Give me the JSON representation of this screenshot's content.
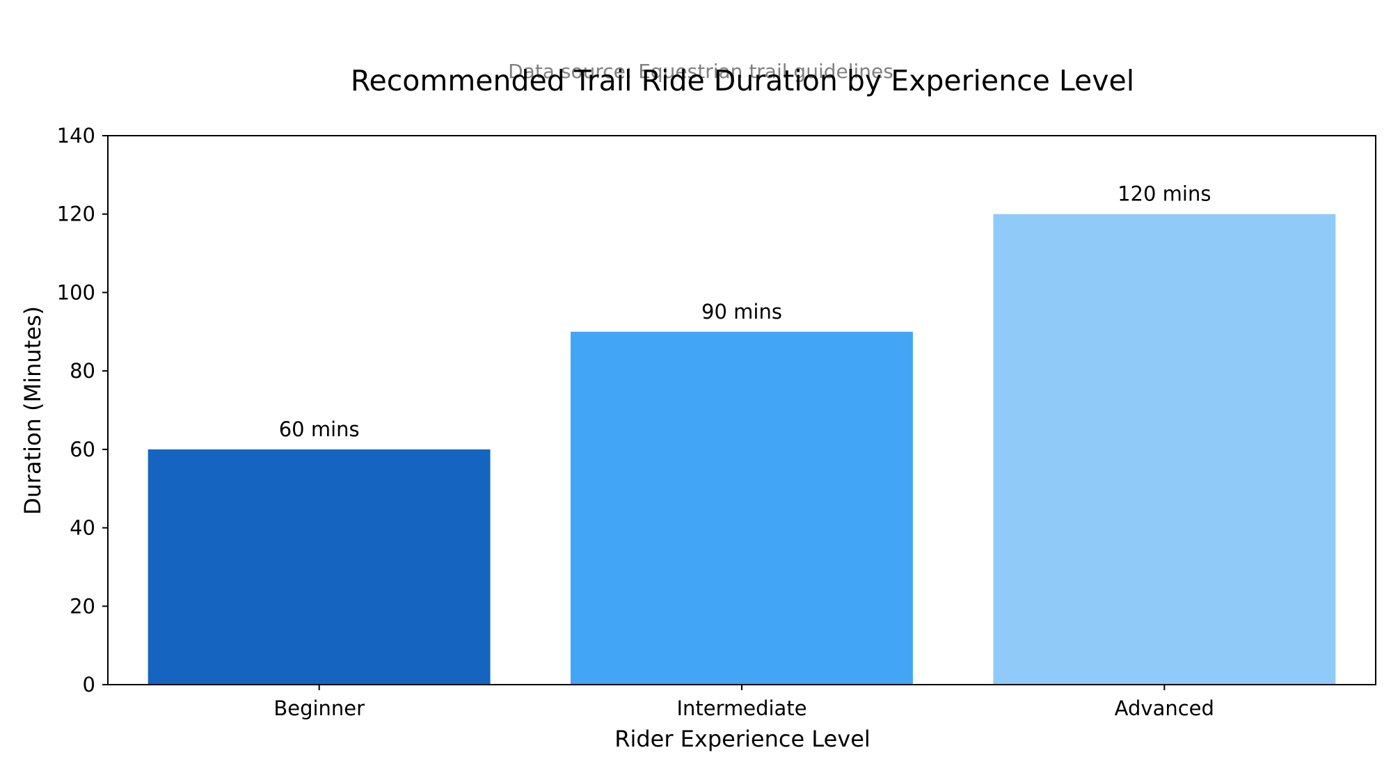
{
  "chart_data": {
    "type": "bar",
    "title": "Recommended Trail Ride Duration by Experience Level",
    "subtitle": "Data source: Equestrian trail guidelines",
    "xlabel": "Rider Experience Level",
    "ylabel": "Duration (Minutes)",
    "categories": [
      "Beginner",
      "Intermediate",
      "Advanced"
    ],
    "values": [
      60,
      90,
      120
    ],
    "data_labels": [
      "60 mins",
      "90 mins",
      "120 mins"
    ],
    "colors": [
      "#1565C0",
      "#42A5F5",
      "#90CAF9"
    ],
    "ylim": [
      0,
      140
    ],
    "yticks": [
      0,
      20,
      40,
      60,
      80,
      100,
      120,
      140
    ],
    "grid": false,
    "legend": "none"
  }
}
